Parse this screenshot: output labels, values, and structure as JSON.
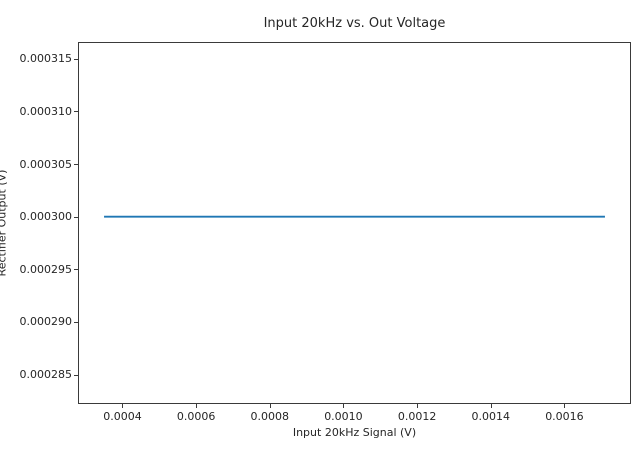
{
  "chart_data": {
    "type": "line",
    "title": "Input 20kHz vs. Out Voltage",
    "xlabel": "Input 20kHz Signal (V)",
    "ylabel": "Rectifier Output (V)",
    "xlim": [
      0.000282,
      0.001778
    ],
    "ylim": [
      0.0002823,
      0.0003165
    ],
    "xticks": {
      "values": [
        0.0004,
        0.0006,
        0.0008,
        0.001,
        0.0012,
        0.0014,
        0.0016
      ],
      "labels": [
        "0.0004",
        "0.0006",
        "0.0008",
        "0.0010",
        "0.0012",
        "0.0014",
        "0.0016"
      ]
    },
    "yticks": {
      "values": [
        0.000285,
        0.00029,
        0.000295,
        0.0003,
        0.000305,
        0.00031,
        0.000315
      ],
      "labels": [
        "0.000285",
        "0.000290",
        "0.000295",
        "0.000300",
        "0.000305",
        "0.000310",
        "0.000315"
      ]
    },
    "grid": false,
    "legend_visible": false,
    "series": [
      {
        "color": "#1f77b4",
        "x": [
          0.00035,
          0.00171
        ],
        "y": [
          0.0003,
          0.0003
        ]
      }
    ]
  },
  "colors": {
    "line": "#1f77b4",
    "axes": "#3a3a3a",
    "text": "#262626",
    "background": "#ffffff"
  }
}
